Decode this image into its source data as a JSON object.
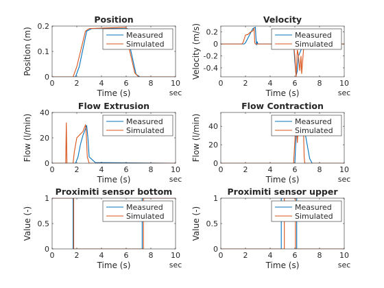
{
  "chart_data": [
    {
      "type": "line",
      "title": "Position",
      "xlabel": "Time (s)",
      "ylabel": "Position (m)",
      "x_unit_label": "sec",
      "xlim": [
        0,
        10
      ],
      "ylim": [
        0,
        0.2
      ],
      "xticks": [
        0,
        2,
        4,
        6,
        8,
        10
      ],
      "yticks": [
        0,
        0.1,
        0.2
      ],
      "legend_position": "top-right",
      "series": [
        {
          "name": "Measured",
          "color": "#0072BD",
          "x": [
            0,
            1.9,
            2.2,
            2.8,
            3.2,
            6.1,
            6.3,
            6.8,
            7.1,
            10
          ],
          "y": [
            0,
            0,
            0.04,
            0.18,
            0.19,
            0.19,
            0.12,
            0.01,
            0,
            0
          ]
        },
        {
          "name": "Simulated",
          "color": "#D95319",
          "x": [
            0,
            1.7,
            2.0,
            2.7,
            3.0,
            6.0,
            6.2,
            6.7,
            7.0,
            10
          ],
          "y": [
            0,
            0,
            0.04,
            0.18,
            0.19,
            0.195,
            0.12,
            0.015,
            0,
            0
          ]
        }
      ]
    },
    {
      "type": "line",
      "title": "Velocity",
      "xlabel": "Time (s)",
      "ylabel": "Velocity (m/s)",
      "x_unit_label": "sec",
      "xlim": [
        0,
        10
      ],
      "ylim": [
        -0.55,
        0.3
      ],
      "xticks": [
        0,
        2,
        4,
        6,
        8,
        10
      ],
      "yticks": [
        -0.4,
        -0.2,
        0,
        0.2
      ],
      "legend_position": "top-right",
      "series": [
        {
          "name": "Measured",
          "color": "#0072BD",
          "x": [
            0,
            1.9,
            2.0,
            2.2,
            2.4,
            2.6,
            2.8,
            2.85,
            2.9,
            2.95,
            3.0,
            5.9,
            6.0,
            6.1,
            6.2,
            6.3,
            6.5,
            6.7,
            10
          ],
          "y": [
            0,
            0,
            0.02,
            0.1,
            0.18,
            0.26,
            0.28,
            0.1,
            -0.02,
            0.04,
            0,
            0,
            -0.3,
            -0.53,
            -0.45,
            -0.2,
            -0.1,
            -0.02,
            0
          ]
        },
        {
          "name": "Simulated",
          "color": "#D95319",
          "x": [
            0,
            1.7,
            1.8,
            2.0,
            2.2,
            2.4,
            2.6,
            2.7,
            2.75,
            2.8,
            5.9,
            6.0,
            6.1,
            6.2,
            6.3,
            6.4,
            6.5,
            6.55,
            6.7,
            6.8,
            10
          ],
          "y": [
            0,
            0,
            0.02,
            0.15,
            0.16,
            0.2,
            0.22,
            0.26,
            0.02,
            0,
            0,
            -0.2,
            -0.55,
            -0.1,
            -0.2,
            -0.45,
            -0.2,
            -0.5,
            -0.1,
            0,
            0
          ]
        }
      ]
    },
    {
      "type": "line",
      "title": "Flow Extrusion",
      "xlabel": "Time (s)",
      "ylabel": "Flow (l/min)",
      "x_unit_label": "sec",
      "xlim": [
        0,
        10
      ],
      "ylim": [
        0,
        40
      ],
      "xticks": [
        0,
        2,
        4,
        6,
        8,
        10
      ],
      "yticks": [
        0,
        20,
        40
      ],
      "legend_position": "top-right",
      "series": [
        {
          "name": "Measured",
          "color": "#0072BD",
          "x": [
            0,
            1.9,
            2.1,
            2.3,
            2.5,
            2.7,
            2.8,
            2.9,
            3.0,
            3.5,
            10
          ],
          "y": [
            0,
            0,
            5,
            15,
            22,
            27,
            30,
            20,
            5,
            0.5,
            0
          ]
        },
        {
          "name": "Simulated",
          "color": "#D95319",
          "x": [
            0,
            1.1,
            1.15,
            1.2,
            1.6,
            1.7,
            1.8,
            2.0,
            2.2,
            2.5,
            2.7,
            2.75,
            2.85,
            3.0,
            10
          ],
          "y": [
            0,
            0,
            32,
            0,
            0,
            0,
            9,
            20,
            22,
            25,
            30,
            27,
            5,
            0,
            0
          ]
        }
      ]
    },
    {
      "type": "line",
      "title": "Flow Contraction",
      "xlabel": "Time (s)",
      "ylabel": "Flow (l/min)",
      "x_unit_label": "sec",
      "xlim": [
        0,
        10
      ],
      "ylim": [
        0,
        55
      ],
      "xticks": [
        0,
        2,
        4,
        6,
        8,
        10
      ],
      "yticks": [
        0,
        20,
        40
      ],
      "legend_position": "top-right",
      "series": [
        {
          "name": "Measured",
          "color": "#0072BD",
          "x": [
            0,
            6.0,
            6.1,
            6.2,
            6.5,
            6.8,
            7.0,
            7.2,
            7.4,
            10
          ],
          "y": [
            0,
            0,
            30,
            45,
            40,
            35,
            20,
            5,
            0,
            0
          ]
        },
        {
          "name": "Simulated",
          "color": "#D95319",
          "x": [
            0,
            5.9,
            6.0,
            6.1,
            6.2,
            6.3,
            6.6,
            6.7,
            6.75,
            6.8,
            10
          ],
          "y": [
            0,
            0,
            25,
            50,
            22,
            45,
            40,
            38,
            8,
            0,
            0
          ]
        }
      ]
    },
    {
      "type": "line",
      "title": "Proximiti sensor bottom",
      "xlabel": "Time (s)",
      "ylabel": "Value (-)",
      "x_unit_label": "sec",
      "xlim": [
        0,
        10
      ],
      "ylim": [
        0,
        1
      ],
      "xticks": [
        0,
        2,
        4,
        6,
        8,
        10
      ],
      "yticks": [
        0,
        0.5,
        1
      ],
      "legend_position": "top-right",
      "series": [
        {
          "name": "Measured",
          "color": "#0072BD",
          "x": [
            0,
            1.7,
            1.7,
            7.3,
            7.3,
            10
          ],
          "y": [
            1,
            1,
            0,
            0,
            1,
            1
          ]
        },
        {
          "name": "Simulated",
          "color": "#D95319",
          "x": [
            0,
            1.75,
            1.75,
            7.4,
            7.4,
            10
          ],
          "y": [
            1,
            1,
            0,
            0,
            1,
            1
          ]
        }
      ]
    },
    {
      "type": "line",
      "title": "Proximiti sensor upper",
      "xlabel": "Time (s)",
      "ylabel": "Value (-)",
      "x_unit_label": "sec",
      "xlim": [
        0,
        10
      ],
      "ylim": [
        0,
        1
      ],
      "xticks": [
        0,
        2,
        4,
        6,
        8,
        10
      ],
      "yticks": [
        0,
        0.5,
        1
      ],
      "legend_position": "top-right",
      "series": [
        {
          "name": "Measured",
          "color": "#0072BD",
          "x": [
            0,
            4.9,
            4.9,
            6.15,
            6.15,
            10
          ],
          "y": [
            0,
            0,
            1,
            1,
            0,
            0
          ]
        },
        {
          "name": "Simulated",
          "color": "#D95319",
          "x": [
            0,
            5.15,
            5.15,
            6.05,
            6.05,
            10
          ],
          "y": [
            0,
            0,
            1,
            1,
            0,
            0
          ]
        }
      ]
    }
  ]
}
